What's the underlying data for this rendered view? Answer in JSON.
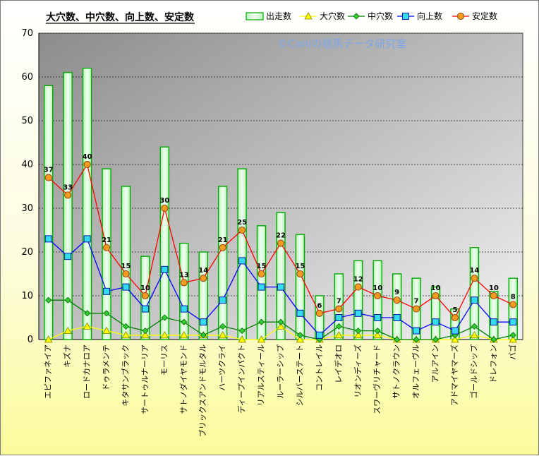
{
  "chart_data": {
    "type": "bar",
    "title": "大穴数、中穴数、向上数、安定数",
    "watermark": "©Caniの競馬データ研究室",
    "ylim": [
      0,
      70
    ],
    "yticks": [
      0,
      10,
      20,
      30,
      40,
      50,
      60,
      70
    ],
    "grid": true,
    "legend_position": "top",
    "categories": [
      "エピファネイア",
      "キズナ",
      "ロードカナロア",
      "ドゥラメンテ",
      "キタサンブラック",
      "サートゥルナーリア",
      "モーリス",
      "サトノダイヤモンド",
      "ブリックスアンドモルタル",
      "ハーツクライ",
      "ディープインパクト",
      "リアルスティール",
      "ルーラーシップ",
      "シルバーステート",
      "コントレイル",
      "レイデオロ",
      "リオンディーズ",
      "スワーヴリチャード",
      "サトノクラウン",
      "オルフェーヴル",
      "アルアイン",
      "アドマイヤマーズ",
      "ゴールドシップ",
      "ドレフォン",
      "バゴ"
    ],
    "series": [
      {
        "name": "出走数",
        "kind": "bar",
        "color": "#00aa00",
        "values": [
          58,
          61,
          62,
          39,
          35,
          19,
          44,
          22,
          20,
          35,
          39,
          26,
          29,
          24,
          10,
          15,
          18,
          18,
          15,
          14,
          12,
          7,
          21,
          11,
          14
        ]
      },
      {
        "name": "大穴数",
        "kind": "line",
        "color": "#ffff00",
        "values": [
          0,
          2,
          3,
          2,
          1,
          1,
          1,
          1,
          1,
          1,
          0,
          0,
          3,
          0,
          0,
          1,
          1,
          1,
          0,
          0,
          0,
          0,
          1,
          0,
          0
        ]
      },
      {
        "name": "中穴数",
        "kind": "line",
        "color": "#008000",
        "values": [
          9,
          9,
          6,
          6,
          3,
          2,
          5,
          4,
          1,
          3,
          2,
          4,
          4,
          1,
          0,
          3,
          2,
          2,
          0,
          0,
          0,
          1,
          3,
          0,
          1
        ]
      },
      {
        "name": "向上数",
        "kind": "line",
        "color": "#0000ff",
        "values": [
          23,
          19,
          23,
          11,
          12,
          7,
          16,
          7,
          4,
          9,
          18,
          12,
          12,
          6,
          1,
          5,
          6,
          5,
          5,
          2,
          4,
          2,
          9,
          4,
          4
        ]
      },
      {
        "name": "安定数",
        "kind": "line",
        "color": "#ff0000",
        "values": [
          37,
          33,
          40,
          21,
          15,
          10,
          30,
          13,
          14,
          21,
          25,
          15,
          22,
          15,
          6,
          7,
          12,
          10,
          9,
          7,
          10,
          5,
          14,
          10,
          8
        ],
        "data_labels": true
      }
    ]
  }
}
